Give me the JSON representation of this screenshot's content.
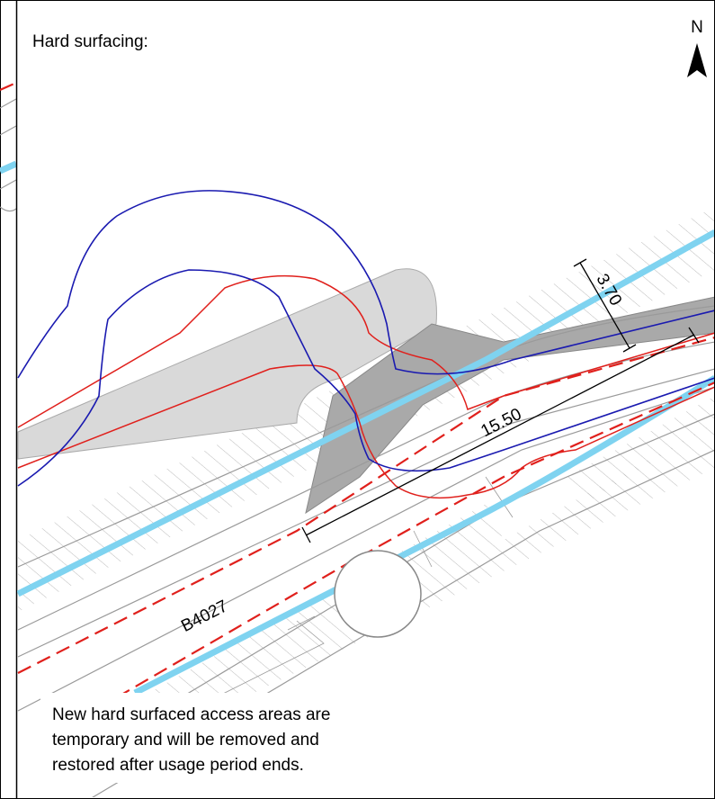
{
  "header": {
    "title": "Hard surfacing:"
  },
  "north": "N",
  "dimensions": [
    "3.70",
    "15.50"
  ],
  "road_label": "B4027",
  "note": {
    "lines": [
      "New hard surfaced access areas are",
      "temporary and will be removed and",
      "restored after usage period ends."
    ]
  }
}
